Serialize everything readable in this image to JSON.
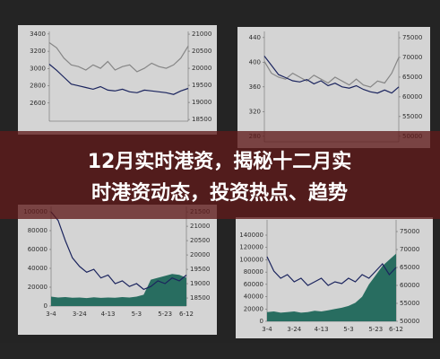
{
  "headline": {
    "lines": [
      "12月实时港资，揭秘十二月实",
      "时港资动态，投资热点、趋势"
    ]
  },
  "chart_data": [
    {
      "type": "line",
      "ylim": [
        2390,
        3430
      ],
      "yticks": [
        3400,
        3200,
        3000,
        2800,
        2600
      ],
      "y2lim": [
        18450,
        21080
      ],
      "y2ticks": [
        21000,
        20500,
        20000,
        19500,
        19000,
        18500
      ],
      "series": [
        {
          "color": "#999999",
          "axis": "y2",
          "values": [
            20750,
            20600,
            20300,
            20100,
            20050,
            19950,
            20100,
            20000,
            20200,
            19950,
            20050,
            20100,
            19900,
            20000,
            20150,
            20050,
            20000,
            20100,
            20300,
            20650
          ]
        },
        {
          "color": "#1f2a6b",
          "values": [
            3050,
            2980,
            2900,
            2820,
            2800,
            2780,
            2760,
            2790,
            2750,
            2740,
            2760,
            2730,
            2720,
            2750,
            2740,
            2730,
            2720,
            2700,
            2740,
            2770
          ]
        }
      ]
    },
    {
      "type": "line",
      "ylim": [
        271,
        450
      ],
      "yticks": [
        440,
        400,
        360,
        320,
        280
      ],
      "y2lim": [
        48600,
        76600
      ],
      "y2ticks": [
        75000,
        70000,
        65000,
        60000,
        55000,
        50000
      ],
      "series": [
        {
          "color": "#999999",
          "axis": "y2",
          "values": [
            69000,
            66000,
            65000,
            64500,
            66000,
            65000,
            64000,
            65500,
            64500,
            63500,
            65000,
            64000,
            63000,
            64500,
            63000,
            62500,
            64000,
            63500,
            66000,
            70000
          ]
        },
        {
          "color": "#1f2a6b",
          "values": [
            410,
            395,
            380,
            375,
            370,
            368,
            372,
            365,
            370,
            362,
            366,
            360,
            358,
            362,
            356,
            352,
            350,
            355,
            350,
            360
          ]
        }
      ]
    },
    {
      "type": "area-line",
      "categories": [
        "3-4",
        null,
        null,
        null,
        "3-24",
        null,
        null,
        null,
        "4-13",
        null,
        null,
        null,
        "5-3",
        null,
        null,
        null,
        "5-23",
        null,
        null,
        "6-12"
      ],
      "ylim": [
        0,
        105700
      ],
      "yticks": [
        100000,
        80000,
        60000,
        40000,
        20000,
        0
      ],
      "y2lim": [
        18220,
        21690
      ],
      "y2ticks": [
        21500,
        21000,
        20500,
        20000,
        19500,
        19000,
        18500
      ],
      "series": [
        {
          "color": "#2e7d6e",
          "kind": "area",
          "values": [
            10000,
            9000,
            9500,
            8800,
            9000,
            8500,
            9200,
            8700,
            9000,
            8800,
            9500,
            9000,
            10000,
            12000,
            28000,
            30000,
            32000,
            34000,
            33000,
            30000
          ]
        },
        {
          "color": "#1f2a6b",
          "axis": "y2",
          "values": [
            21500,
            21200,
            20500,
            19900,
            19600,
            19400,
            19500,
            19200,
            19300,
            19000,
            19100,
            18900,
            19000,
            18800,
            18900,
            19100,
            19000,
            19200,
            19100,
            19300
          ]
        }
      ]
    },
    {
      "type": "area-line",
      "categories": [
        "3-4",
        null,
        null,
        null,
        "3-24",
        null,
        null,
        null,
        "4-13",
        null,
        null,
        null,
        "5-3",
        null,
        null,
        null,
        "5-23",
        null,
        null,
        "6-12"
      ],
      "ylim": [
        0,
        164800
      ],
      "yticks": [
        140000,
        120000,
        100000,
        80000,
        60000,
        40000,
        20000,
        0
      ],
      "y2lim": [
        50000,
        78250
      ],
      "y2ticks": [
        75000,
        70000,
        65000,
        60000,
        55000,
        50000
      ],
      "series": [
        {
          "color": "#2e7d6e",
          "kind": "area",
          "values": [
            15000,
            16000,
            14000,
            15000,
            16000,
            14000,
            15000,
            17000,
            16000,
            18000,
            20000,
            22000,
            25000,
            30000,
            40000,
            60000,
            75000,
            90000,
            100000,
            110000
          ]
        },
        {
          "color": "#1f2a6b",
          "axis": "y2",
          "values": [
            68000,
            64000,
            62000,
            63000,
            61000,
            62000,
            60000,
            61000,
            62000,
            60000,
            61000,
            60500,
            62000,
            61000,
            63000,
            62000,
            64000,
            66000,
            63000,
            65000
          ]
        }
      ]
    }
  ]
}
